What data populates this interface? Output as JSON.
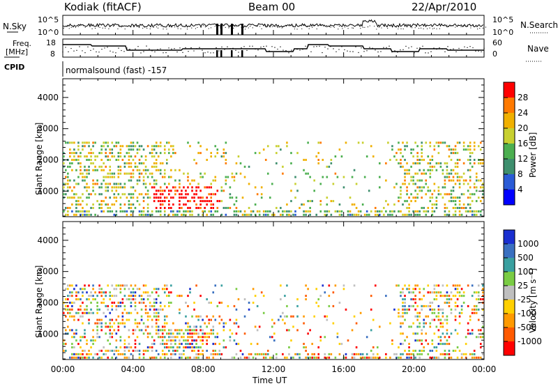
{
  "header": {
    "station": "Kodiak (fitACF)",
    "beam": "Beam 00",
    "date": "22/Apr/2010"
  },
  "panels": {
    "nsky": {
      "left_label": "N.Sky",
      "right_label": "N.Search",
      "y_ticks": [
        "10^5",
        "10^0"
      ],
      "right_ticks": [
        "10^5",
        "10^0"
      ]
    },
    "freq": {
      "left_label_top": "Freq.",
      "left_label_unit": "[MHz]",
      "right_label": "Nave",
      "y_ticks": [
        "18",
        "8"
      ],
      "right_ticks": [
        "60",
        "0"
      ]
    },
    "cpid": {
      "label": "CPID",
      "text": "normalsound (fast) -157"
    }
  },
  "chart_data": [
    {
      "type": "heatmap",
      "name": "power",
      "ylabel": "Slant Range [km]",
      "ylim": [
        180,
        4600
      ],
      "y_ticks": [
        "1000",
        "2000",
        "3000",
        "4000"
      ],
      "xlim": [
        0,
        24
      ],
      "colorbar_label": "Power [dB]",
      "colorbar_ticks": [
        "4",
        "8",
        "12",
        "16",
        "20",
        "24",
        "28"
      ],
      "colorbar_colors": [
        "#0000ff",
        "#2a5bd6",
        "#3e8f6e",
        "#4caf50",
        "#c8d030",
        "#f0b000",
        "#ff7a00",
        "#ff0000"
      ]
    },
    {
      "type": "heatmap",
      "name": "velocity",
      "ylabel": "Slant Range [km]",
      "ylim": [
        180,
        4600
      ],
      "y_ticks": [
        "1000",
        "2000",
        "3000",
        "4000"
      ],
      "xlim": [
        0,
        24
      ],
      "xlabel": "Time UT",
      "x_ticks": [
        "00:00",
        "04:00",
        "08:00",
        "12:00",
        "16:00",
        "20:00",
        "00:00"
      ],
      "colorbar_label": "Velocity [m s⁻¹]",
      "colorbar_ticks": [
        "1000",
        "500",
        "100",
        "25",
        "-25",
        "-100",
        "-500",
        "-1000"
      ],
      "colorbar_colors": [
        "#1a2fd0",
        "#3a70c0",
        "#3aa0a0",
        "#7acc44",
        "#bfbfbf",
        "#ffd000",
        "#ff9a00",
        "#ff5a00",
        "#ff0000"
      ]
    }
  ]
}
